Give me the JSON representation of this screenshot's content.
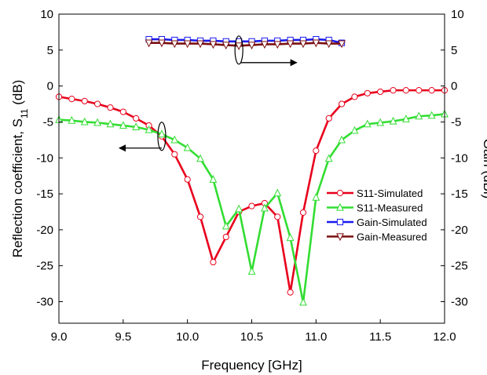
{
  "chart_data": {
    "type": "line",
    "title": "",
    "xlabel": "Frequency [GHz]",
    "ylabel_left": "Reflection coefficient, S11 (dB)",
    "ylabel_left_parts": [
      "Reflection coefficient, S",
      "11",
      " (dB)"
    ],
    "ylabel_right": "Gain (dBi)",
    "xlim": [
      9.0,
      12.0
    ],
    "ylim_left": [
      -33,
      10
    ],
    "ylim_right": [
      -33,
      10
    ],
    "x_ticks": [
      "9.0",
      "9.5",
      "10.0",
      "10.5",
      "11.0",
      "11.5",
      "12.0"
    ],
    "y_ticks_left": [
      "10",
      "5",
      "0",
      "-5",
      "-10",
      "-15",
      "-20",
      "-25",
      "-30"
    ],
    "y_ticks_right": [
      "10",
      "5",
      "0",
      "-5",
      "-10",
      "-15",
      "-20",
      "-25",
      "-30"
    ],
    "grid": false,
    "legend_position": "right-middle",
    "series": [
      {
        "name": "S11-Simulated",
        "axis": "left",
        "color": "#e8001c",
        "marker": "circle",
        "x": [
          9.0,
          9.1,
          9.2,
          9.3,
          9.4,
          9.5,
          9.6,
          9.7,
          9.8,
          9.9,
          10.0,
          10.1,
          10.2,
          10.3,
          10.4,
          10.5,
          10.6,
          10.7,
          10.8,
          10.9,
          11.0,
          11.1,
          11.2,
          11.3,
          11.4,
          11.5,
          11.6,
          11.7,
          11.8,
          11.9,
          12.0
        ],
        "y": [
          -1.5,
          -1.8,
          -2.1,
          -2.5,
          -3.0,
          -3.6,
          -4.5,
          -5.5,
          -7.0,
          -9.5,
          -13.0,
          -18.2,
          -24.5,
          -21.0,
          -17.5,
          -16.7,
          -16.3,
          -18.2,
          -28.7,
          -17.6,
          -9.0,
          -4.5,
          -2.5,
          -1.5,
          -1.0,
          -0.8,
          -0.6,
          -0.6,
          -0.6,
          -0.6,
          -0.6
        ]
      },
      {
        "name": "S11-Measured",
        "axis": "left",
        "color": "#33dd33",
        "marker": "triangle-up",
        "x": [
          9.0,
          9.1,
          9.2,
          9.3,
          9.4,
          9.5,
          9.6,
          9.7,
          9.8,
          9.9,
          10.0,
          10.1,
          10.2,
          10.3,
          10.4,
          10.5,
          10.6,
          10.7,
          10.8,
          10.9,
          11.0,
          11.1,
          11.2,
          11.3,
          11.4,
          11.5,
          11.6,
          11.7,
          11.8,
          11.9,
          12.0
        ],
        "y": [
          -4.7,
          -4.8,
          -5.0,
          -5.1,
          -5.3,
          -5.5,
          -5.7,
          -6.1,
          -6.7,
          -7.5,
          -8.6,
          -10.1,
          -13.0,
          -19.5,
          -17.1,
          -25.8,
          -17.0,
          -14.9,
          -21.1,
          -30.1,
          -15.5,
          -10.1,
          -7.5,
          -6.2,
          -5.3,
          -5.1,
          -4.9,
          -4.6,
          -4.2,
          -4.1,
          -3.9
        ]
      },
      {
        "name": "Gain-Simulated",
        "axis": "right",
        "color": "#1a1aee",
        "marker": "square",
        "x": [
          9.7,
          9.8,
          9.9,
          10.0,
          10.1,
          10.2,
          10.3,
          10.4,
          10.5,
          10.6,
          10.7,
          10.8,
          10.9,
          11.0,
          11.1,
          11.2
        ],
        "y": [
          6.5,
          6.5,
          6.4,
          6.4,
          6.3,
          6.3,
          6.2,
          6.2,
          6.2,
          6.3,
          6.3,
          6.4,
          6.4,
          6.5,
          6.4,
          6.0
        ]
      },
      {
        "name": "Gain-Measured",
        "axis": "right",
        "color": "#7b1010",
        "marker": "triangle-down",
        "x": [
          9.7,
          9.8,
          9.9,
          10.0,
          10.1,
          10.2,
          10.3,
          10.4,
          10.5,
          10.6,
          10.7,
          10.8,
          10.9,
          11.0,
          11.1,
          11.2
        ],
        "y": [
          6.0,
          6.0,
          5.9,
          5.9,
          5.9,
          5.8,
          5.7,
          5.6,
          5.7,
          5.8,
          5.8,
          5.9,
          5.9,
          6.0,
          5.9,
          5.9
        ]
      }
    ],
    "annotations": [
      {
        "type": "ellipse-arrow",
        "direction": "left",
        "target_axis": "left",
        "x": 9.8,
        "y": -7.0,
        "arrow_to_x": 9.47
      },
      {
        "type": "ellipse-arrow",
        "direction": "right",
        "target_axis": "right",
        "x": 10.4,
        "y": 5.0,
        "arrow_to_x": 10.85
      }
    ]
  }
}
